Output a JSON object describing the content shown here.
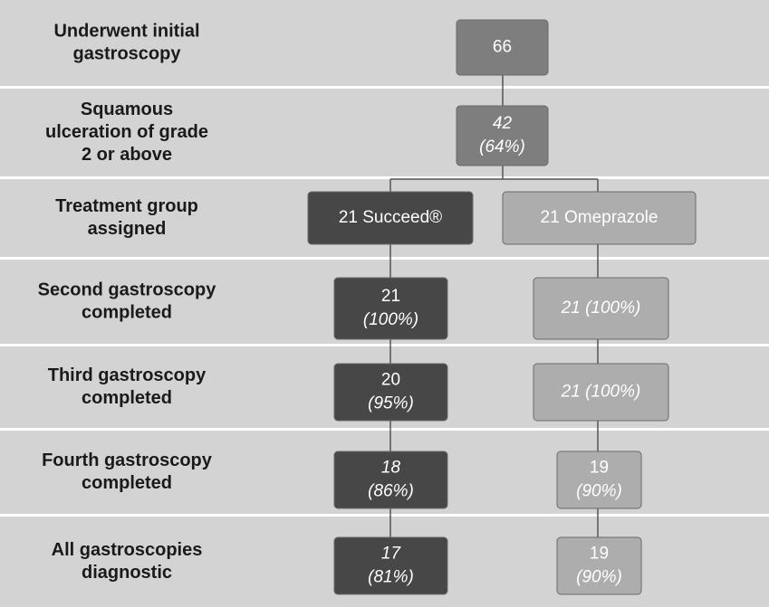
{
  "rows": [
    {
      "label": [
        "Underwent initial",
        "gastroscopy"
      ],
      "boxes": [
        {
          "lines": [
            "66"
          ]
        }
      ]
    },
    {
      "label": [
        "Squamous",
        "ulceration of grade",
        "2 or above"
      ],
      "boxes": [
        {
          "lines": [
            "42",
            "(64%)"
          ]
        }
      ]
    },
    {
      "label": [
        "Treatment group",
        "assigned"
      ],
      "boxes": [
        {
          "lines": [
            "21 Succeed®"
          ]
        },
        {
          "lines": [
            "21 Omeprazole"
          ]
        }
      ]
    },
    {
      "label": [
        "Second gastroscopy",
        "completed"
      ],
      "boxes": [
        {
          "lines": [
            "21",
            "(100%)"
          ]
        },
        {
          "lines": [
            "21 (100%)"
          ]
        }
      ]
    },
    {
      "label": [
        "Third gastroscopy",
        "completed"
      ],
      "boxes": [
        {
          "lines": [
            "20",
            "(95%)"
          ]
        },
        {
          "lines": [
            "21 (100%)"
          ]
        }
      ]
    },
    {
      "label": [
        "Fourth gastroscopy",
        "completed"
      ],
      "boxes": [
        {
          "lines": [
            "18",
            "(86%)"
          ]
        },
        {
          "lines": [
            "19",
            "(90%)"
          ]
        }
      ]
    },
    {
      "label": [
        "All gastroscopies",
        "diagnostic"
      ],
      "boxes": [
        {
          "lines": [
            "17",
            "(81%)"
          ]
        },
        {
          "lines": [
            "19",
            "(90%)"
          ]
        }
      ]
    }
  ]
}
